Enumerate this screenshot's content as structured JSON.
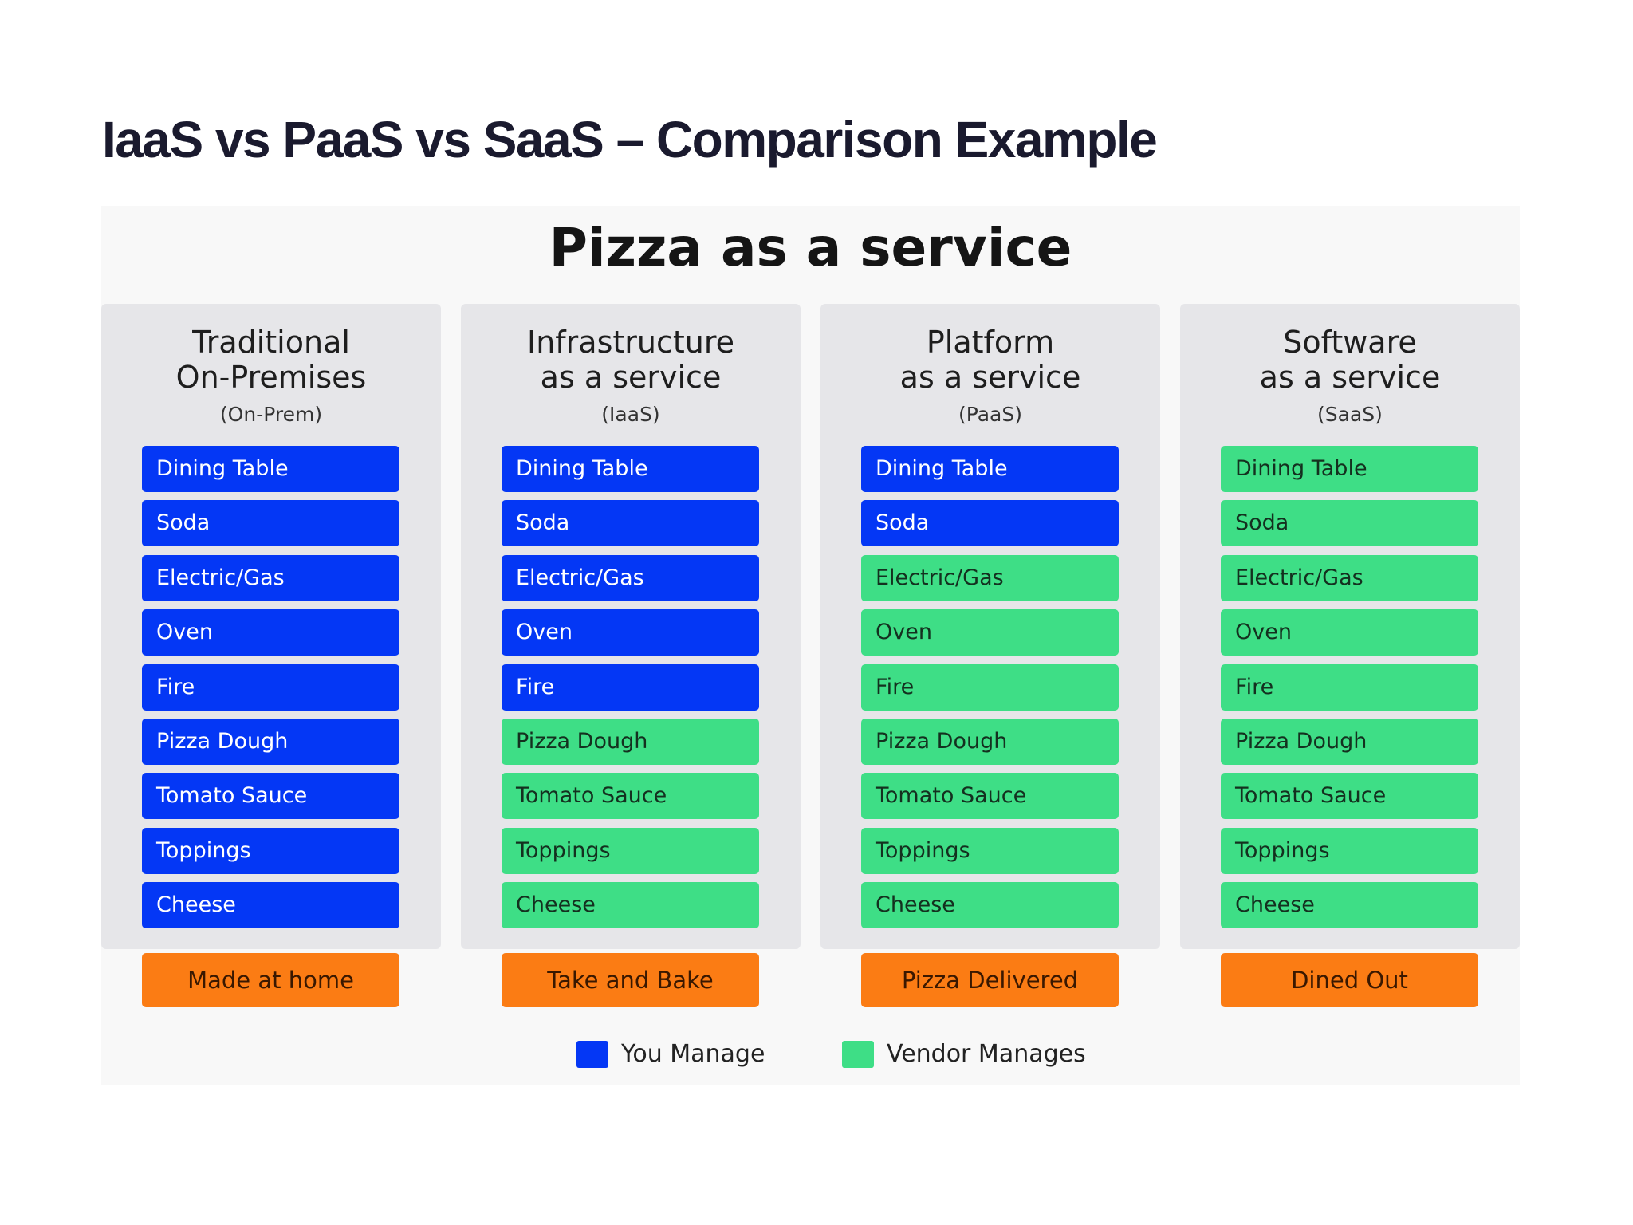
{
  "page_title": "IaaS vs PaaS vs SaaS – Comparison Example",
  "diagram": {
    "title": "Pizza as a service",
    "colors": {
      "you_manage": "#0437f5",
      "vendor_manages": "#3ede86",
      "footer": "#fb7c14",
      "column_bg": "#e6e6e9"
    },
    "items": [
      "Dining Table",
      "Soda",
      "Electric/Gas",
      "Oven",
      "Fire",
      "Pizza Dough",
      "Tomato Sauce",
      "Toppings",
      "Cheese"
    ],
    "columns": [
      {
        "title": "Traditional\nOn-Premises",
        "subtitle": "(On-Prem)",
        "managed_by": [
          "you",
          "you",
          "you",
          "you",
          "you",
          "you",
          "you",
          "you",
          "you"
        ],
        "footer": "Made at home"
      },
      {
        "title": "Infrastructure\nas a service",
        "subtitle": "(IaaS)",
        "managed_by": [
          "you",
          "you",
          "you",
          "you",
          "you",
          "vendor",
          "vendor",
          "vendor",
          "vendor"
        ],
        "footer": "Take and Bake"
      },
      {
        "title": "Platform\nas a service",
        "subtitle": "(PaaS)",
        "managed_by": [
          "you",
          "you",
          "vendor",
          "vendor",
          "vendor",
          "vendor",
          "vendor",
          "vendor",
          "vendor"
        ],
        "footer": "Pizza Delivered"
      },
      {
        "title": "Software\nas a service",
        "subtitle": "(SaaS)",
        "managed_by": [
          "vendor",
          "vendor",
          "vendor",
          "vendor",
          "vendor",
          "vendor",
          "vendor",
          "vendor",
          "vendor"
        ],
        "footer": "Dined Out"
      }
    ],
    "legend": {
      "you_manage": "You Manage",
      "vendor_manages": "Vendor Manages"
    }
  }
}
